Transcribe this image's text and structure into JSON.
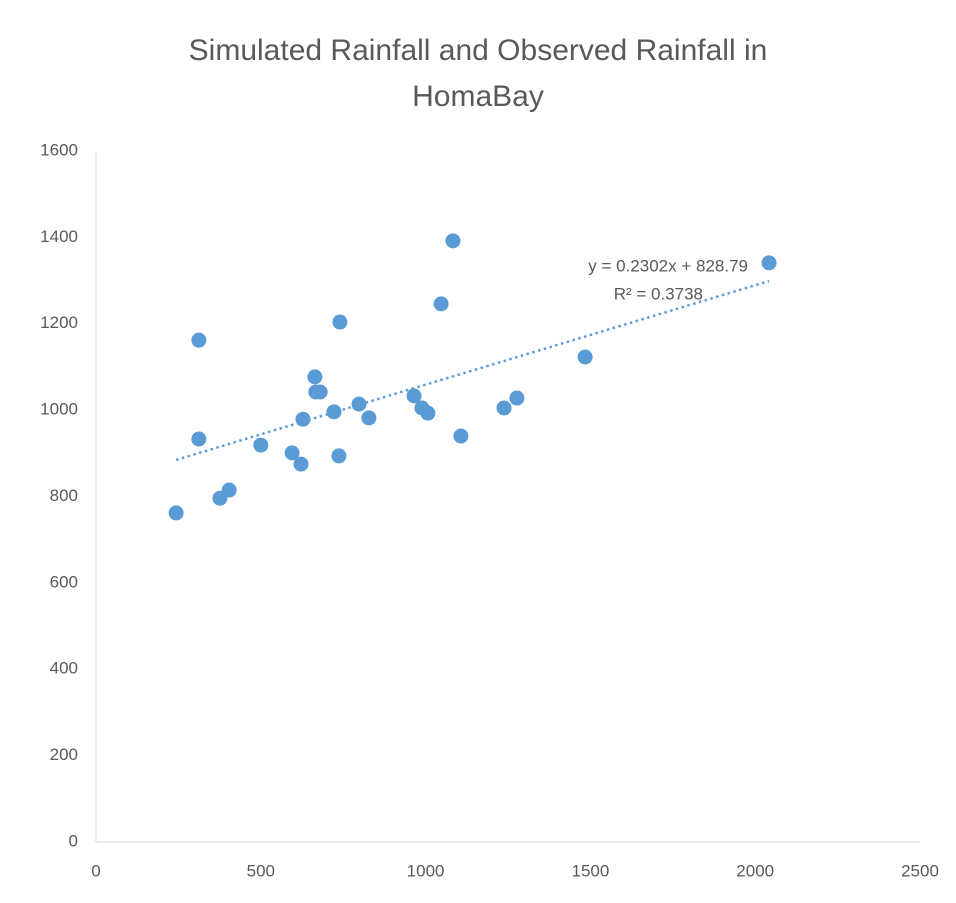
{
  "chart_data": {
    "type": "scatter",
    "title": "Simulated Rainfall and Observed Rainfall in HomaBay",
    "color": "#5b9bd5",
    "x": [
      243,
      312,
      312,
      376,
      404,
      500,
      595,
      622,
      628,
      664,
      667,
      680,
      722,
      737,
      740,
      798,
      828,
      965,
      989,
      1007,
      1047,
      1083,
      1107,
      1238,
      1277,
      1484,
      2042
    ],
    "values": [
      762,
      1162,
      933,
      796,
      815,
      919,
      901,
      875,
      979,
      1077,
      1042,
      1042,
      996,
      894,
      1204,
      1014,
      982,
      1033,
      1005,
      993,
      1246,
      1392,
      940,
      1005,
      1028,
      1123,
      1341
    ],
    "xlim": [
      0,
      2500
    ],
    "xticks": [
      0,
      500,
      1000,
      1500,
      2000,
      2500
    ],
    "ylim": [
      0,
      1600
    ],
    "yticks": [
      0,
      200,
      400,
      600,
      800,
      1000,
      1200,
      1400,
      1600
    ],
    "grid": false,
    "trendline": {
      "slope": 0.2302,
      "intercept": 828.79,
      "color": "#5b9bd5",
      "equation": "y = 0.2302x + 828.79",
      "r_squared": "R² = 0.3738"
    }
  }
}
